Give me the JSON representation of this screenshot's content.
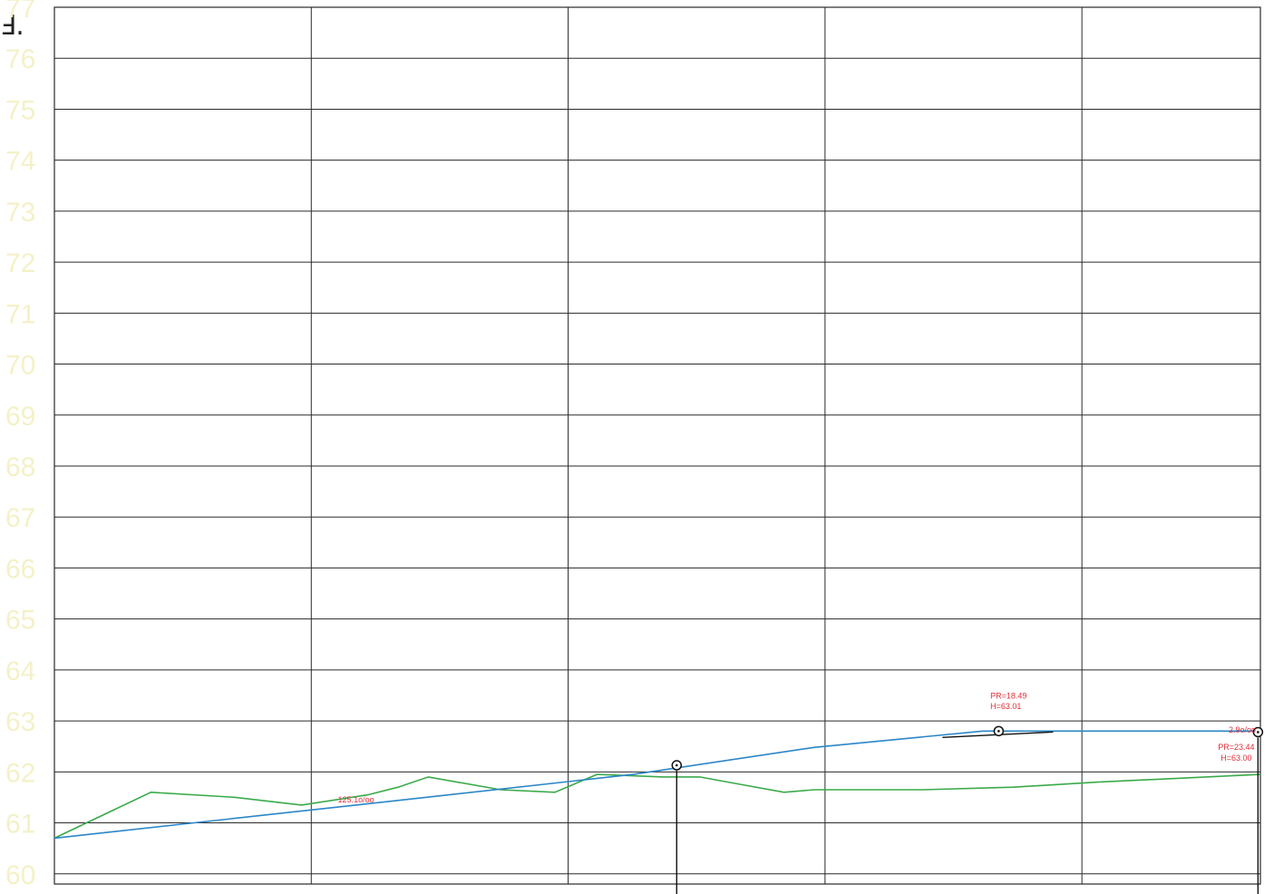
{
  "corner_mark": "Ⅎ.",
  "chart_data": {
    "type": "line",
    "title": "",
    "xlabel": "",
    "ylabel": "",
    "ylim": [
      50,
      77
    ],
    "yticks": [
      77,
      76,
      75,
      74,
      73,
      72,
      71,
      70,
      69,
      68,
      67,
      66,
      65,
      64,
      63,
      62,
      61,
      60
    ],
    "ytick_labels": [
      "77",
      "76",
      "75",
      "74",
      "73",
      "72",
      "71",
      "70",
      "69",
      "68",
      "67",
      "66",
      "65",
      "64",
      "63",
      "62",
      "61",
      "60"
    ],
    "grid": true,
    "colors": {
      "terrain": "#3aaa4a",
      "design": "#2a86c8",
      "grid": "#2a2a2a",
      "label": "#e0303a",
      "ticks": "#f4f1c8"
    },
    "series": [
      {
        "key": "terrain",
        "points": [
          [
            0.0,
            60.7
          ],
          [
            8.0,
            61.6
          ],
          [
            15.0,
            61.5
          ],
          [
            20.5,
            61.35
          ],
          [
            26.0,
            61.55
          ],
          [
            28.5,
            61.7
          ],
          [
            31.0,
            61.9
          ],
          [
            37.0,
            61.65
          ],
          [
            41.5,
            61.6
          ],
          [
            45.0,
            61.95
          ],
          [
            50.5,
            61.9
          ],
          [
            53.5,
            61.9
          ],
          [
            57.0,
            61.75
          ],
          [
            60.5,
            61.6
          ],
          [
            63.0,
            61.65
          ],
          [
            72.0,
            61.65
          ],
          [
            79.5,
            61.7
          ],
          [
            86.5,
            61.8
          ],
          [
            100.0,
            61.95
          ]
        ]
      },
      {
        "key": "design",
        "points": [
          [
            0.0,
            60.7
          ],
          [
            25.0,
            61.35
          ],
          [
            48.0,
            61.95
          ],
          [
            63.0,
            62.48
          ],
          [
            77.0,
            62.8
          ],
          [
            100.0,
            62.8
          ]
        ]
      }
    ],
    "annotations": [
      {
        "text": "125.1o/oo",
        "x": 23.5,
        "y": 61.4
      },
      {
        "text": "PR=18.49",
        "x": 77.6,
        "y": 63.44
      },
      {
        "text": "H=63.01",
        "x": 77.6,
        "y": 63.23
      },
      {
        "text": "2.9o/oo",
        "x": 98.5,
        "y": 62.77
      },
      {
        "text": "PR=23.44",
        "x": 98.0,
        "y": 62.43
      },
      {
        "text": "H=63.00",
        "x": 98.0,
        "y": 62.22
      }
    ],
    "markers": [
      {
        "name": "pvi-left",
        "x": 51.6,
        "y": 62.13,
        "vertical_line": true
      },
      {
        "name": "pvi-middle",
        "x": 78.3,
        "y": 62.8,
        "tangent": true
      },
      {
        "name": "pvi-right",
        "x": 99.8,
        "y": 62.78,
        "vertical_line": true
      }
    ]
  }
}
